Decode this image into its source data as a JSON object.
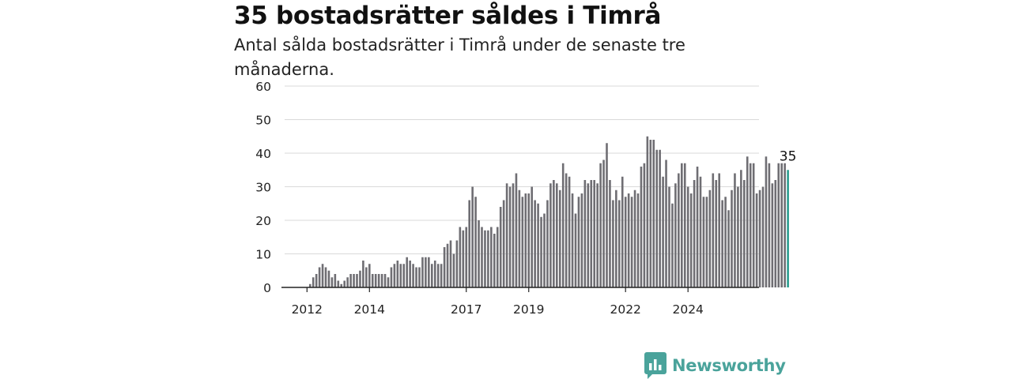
{
  "title": "35 bostadsrätter såldes i Timrå",
  "subtitle": "Antal sålda bostadsrätter i Timrå under de senaste tre månaderna.",
  "colors": {
    "bar": "#6f6e73",
    "highlight": "#2a9d8f",
    "grid": "#d9d9d9",
    "axis": "#222222",
    "brand": "#4aa39b"
  },
  "brand": {
    "name": "Newsworthy",
    "icon": "newsworthy-logo-icon"
  },
  "chart_data": {
    "type": "bar",
    "title": "35 bostadsrätter såldes i Timrå",
    "subtitle": "Antal sålda bostadsrätter i Timrå under de senaste tre månaderna.",
    "xlabel": "",
    "ylabel": "",
    "ylim": [
      0,
      60
    ],
    "yticks": [
      0,
      10,
      20,
      30,
      40,
      50,
      60
    ],
    "grid": true,
    "xticks": [
      {
        "label": "2012",
        "index": 0
      },
      {
        "label": "2014",
        "index": 20
      },
      {
        "label": "2017",
        "index": 51
      },
      {
        "label": "2019",
        "index": 71
      },
      {
        "label": "2022",
        "index": 102
      },
      {
        "label": "2024",
        "index": 122
      }
    ],
    "values": [
      0,
      1,
      3,
      4,
      6,
      7,
      6,
      5,
      3,
      4,
      2,
      1,
      2,
      3,
      4,
      4,
      4,
      5,
      8,
      6,
      7,
      4,
      4,
      4,
      4,
      4,
      3,
      6,
      7,
      8,
      7,
      7,
      9,
      8,
      7,
      6,
      6,
      9,
      9,
      9,
      7,
      8,
      7,
      7,
      12,
      13,
      14,
      10,
      14,
      18,
      17,
      18,
      26,
      30,
      27,
      20,
      18,
      17,
      17,
      18,
      16,
      18,
      24,
      26,
      31,
      30,
      31,
      34,
      29,
      27,
      28,
      28,
      30,
      26,
      25,
      21,
      22,
      26,
      31,
      32,
      31,
      29,
      37,
      34,
      33,
      28,
      22,
      27,
      28,
      32,
      31,
      32,
      32,
      31,
      37,
      38,
      43,
      32,
      26,
      29,
      26,
      33,
      27,
      28,
      27,
      29,
      28,
      36,
      37,
      45,
      44,
      44,
      41,
      41,
      33,
      38,
      30,
      25,
      31,
      34,
      37,
      37,
      30,
      28,
      32,
      36,
      33,
      27,
      27,
      29,
      34,
      32,
      34,
      26,
      27,
      23,
      29,
      34,
      30,
      35,
      32,
      39,
      37,
      37,
      28,
      29,
      30,
      39,
      37,
      31,
      32,
      37,
      37,
      37,
      35
    ],
    "highlight_index": 154,
    "highlight_label": "35"
  }
}
